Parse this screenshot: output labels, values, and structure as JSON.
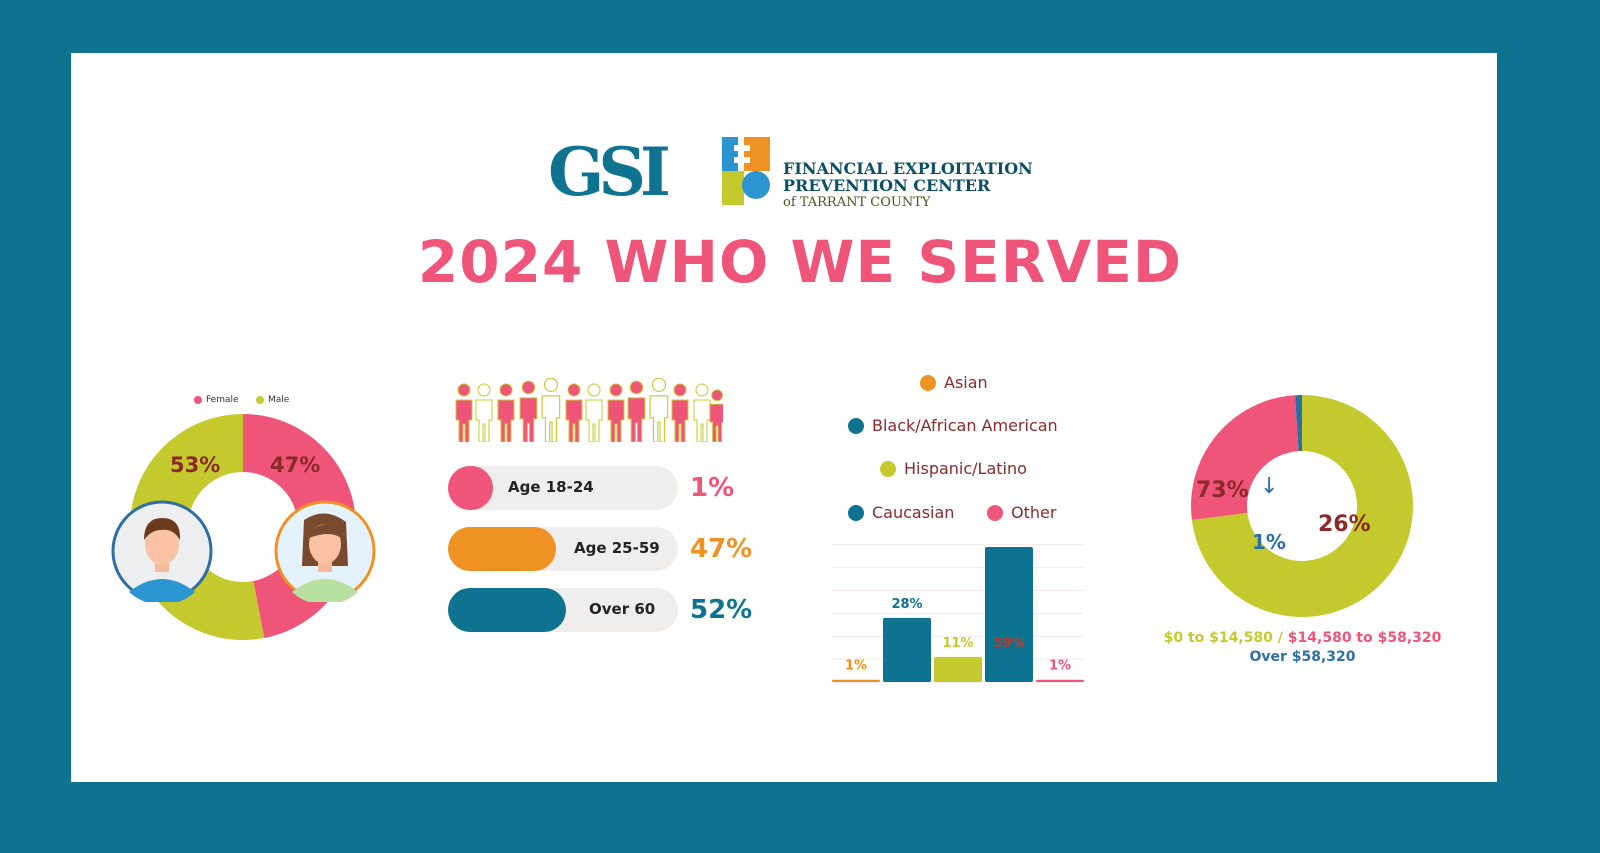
{
  "logos": {
    "gsi": "GSI",
    "fepc_mark": "FEPC",
    "fepc_line1": "FINANCIAL EXPLOITATION",
    "fepc_line2": "PREVENTION CENTER",
    "fepc_line3": "of TARRANT COUNTY"
  },
  "title": "2024 WHO WE SERVED",
  "colors": {
    "pink": "#ef5479",
    "lime": "#c4c92e",
    "teal": "#0e7391",
    "orange": "#ee9223",
    "maroon": "#8a2a2a",
    "blue": "#2e6fa3"
  },
  "chart_data": [
    {
      "type": "pie",
      "name": "gender",
      "legend": [
        "Female",
        "Male"
      ],
      "labels": [
        "47%",
        "53%"
      ],
      "values": [
        47,
        53
      ],
      "colors": [
        "#ef5479",
        "#c4c92e"
      ]
    },
    {
      "type": "bar",
      "name": "age",
      "categories": [
        "Age 18-24",
        "Age 25-59",
        "Over 60"
      ],
      "values": [
        1,
        47,
        52
      ],
      "labels": [
        "1%",
        "47%",
        "52%"
      ],
      "colors": [
        "#ef5479",
        "#ee9223",
        "#0e7391"
      ]
    },
    {
      "type": "bar",
      "name": "ethnicity",
      "legend": [
        "Asian",
        "Black/African American",
        "Hispanic/Latino",
        "Caucasian",
        "Other"
      ],
      "categories": [
        "Asian",
        "Black/African American",
        "Hispanic/Latino",
        "Caucasian",
        "Other"
      ],
      "values": [
        1,
        28,
        11,
        59,
        1
      ],
      "labels": [
        "1%",
        "28%",
        "11%",
        "59%",
        "1%"
      ],
      "colors": [
        "#ee9223",
        "#0e7391",
        "#c4c92e",
        "#0e7391",
        "#ef5479"
      ],
      "ylim": [
        0,
        60
      ],
      "grid": true
    },
    {
      "type": "pie",
      "name": "income",
      "categories": [
        "$0 to $14,580",
        "$14,580 to $58,320",
        "Over $58,320"
      ],
      "values": [
        73,
        26,
        1
      ],
      "labels": [
        "73%",
        "26%",
        "1%"
      ],
      "colors": [
        "#c4c92e",
        "#ef5479",
        "#2e6fa3"
      ],
      "legend_sep": " / ",
      "arrow": "↓"
    }
  ]
}
